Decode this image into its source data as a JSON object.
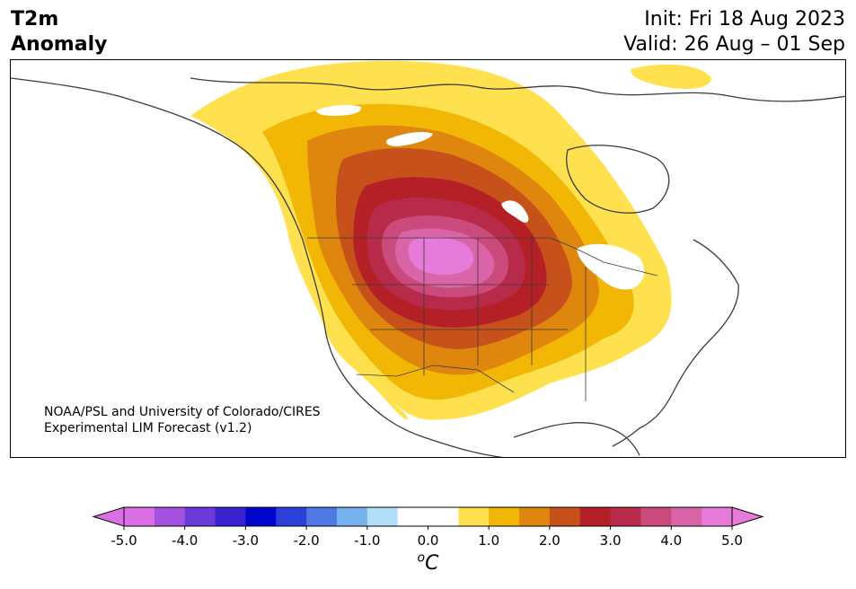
{
  "header": {
    "title_line1": "T2m",
    "title_line2": "Anomaly",
    "init_label": "Init: Fri 18 Aug 2023",
    "valid_label": "Valid: 26 Aug – 01 Sep"
  },
  "map": {
    "credit_line1": "NOAA/PSL and University of Colorado/CIRES",
    "credit_line2": "Experimental LIM Forecast (v1.2)",
    "region": "North America",
    "field": "2-m temperature anomaly",
    "hotspot": "northern Rockies / northern Plains",
    "coastline_color": "#3a3a3a"
  },
  "colorbar": {
    "unit_label": "oC",
    "tick_labels": [
      "-5.0",
      "-4.0",
      "-3.0",
      "-2.0",
      "-1.0",
      "0.0",
      "1.0",
      "2.0",
      "3.0",
      "4.0",
      "5.0"
    ],
    "colors": [
      "#dc6fe6",
      "#a352e0",
      "#6a39da",
      "#3a22d0",
      "#0006cc",
      "#2b3fd9",
      "#4f78e4",
      "#77b2f0",
      "#b1dff9",
      "#ffffff",
      "#ffffff",
      "#ffe14f",
      "#f2b705",
      "#df860f",
      "#c6511a",
      "#b42025",
      "#b72a4a",
      "#c94a7b",
      "#da64a8",
      "#e77bd9"
    ],
    "extend_min_color": "#dc6fe6",
    "extend_max_color": "#e77bd9"
  }
}
